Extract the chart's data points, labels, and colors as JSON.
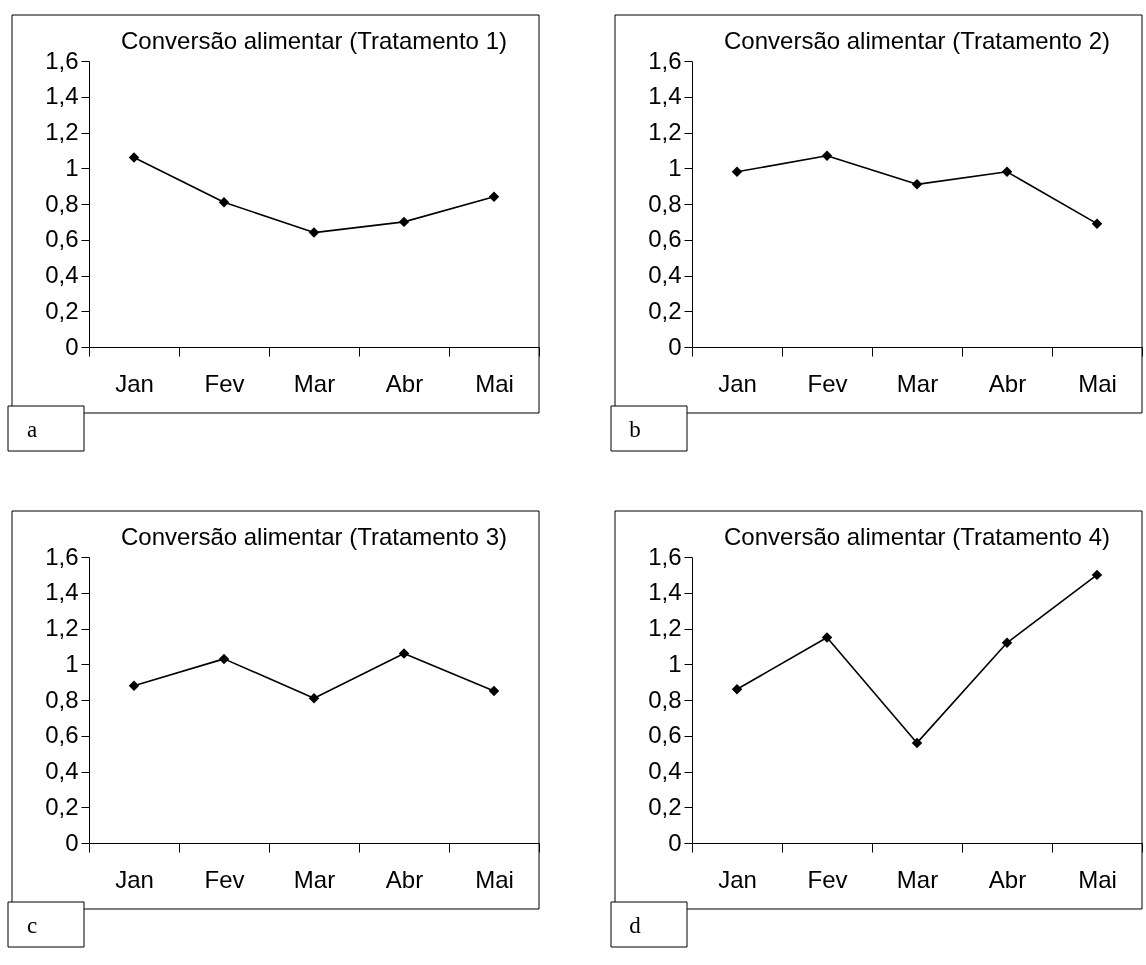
{
  "chart_data": [
    {
      "type": "line",
      "title": "Conversão alimentar (Tratamento 1)",
      "categories": [
        "Jan",
        "Fev",
        "Mar",
        "Abr",
        "Mai"
      ],
      "series": [
        {
          "color": "#000000",
          "values": [
            1.06,
            0.81,
            0.64,
            0.7,
            0.84
          ]
        }
      ],
      "ylim": [
        0,
        1.6
      ],
      "yticks": [
        0,
        {
          "value": 0.2,
          "label": "0,2"
        },
        {
          "value": 0.4,
          "label": "0,4"
        },
        {
          "value": 0.6,
          "label": "0,6"
        },
        {
          "value": 0.8,
          "label": "0,8"
        },
        1,
        {
          "value": 1.2,
          "label": "1,2"
        },
        {
          "value": 1.4,
          "label": "1,4"
        },
        {
          "value": 1.6,
          "label": "1,6"
        }
      ],
      "marker": "diamond",
      "line_style": "solid",
      "annotations": [
        "a"
      ]
    },
    {
      "type": "line",
      "title": "Conversão alimentar (Tratamento 2)",
      "categories": [
        "Jan",
        "Fev",
        "Mar",
        "Abr",
        "Mai"
      ],
      "series": [
        {
          "color": "#000000",
          "values": [
            0.98,
            1.07,
            0.91,
            0.98,
            0.69
          ]
        }
      ],
      "ylim": [
        0,
        1.6
      ],
      "yticks": [
        0,
        {
          "value": 0.2,
          "label": "0,2"
        },
        {
          "value": 0.4,
          "label": "0,4"
        },
        {
          "value": 0.6,
          "label": "0,6"
        },
        {
          "value": 0.8,
          "label": "0,8"
        },
        1,
        {
          "value": 1.2,
          "label": "1,2"
        },
        {
          "value": 1.4,
          "label": "1,4"
        },
        {
          "value": 1.6,
          "label": "1,6"
        }
      ],
      "marker": "diamond",
      "line_style": "solid",
      "annotations": [
        "b"
      ]
    },
    {
      "type": "line",
      "title": "Conversão alimentar (Tratamento 3)",
      "categories": [
        "Jan",
        "Fev",
        "Mar",
        "Abr",
        "Mai"
      ],
      "series": [
        {
          "color": "#000000",
          "values": [
            0.88,
            1.03,
            0.81,
            1.06,
            0.85
          ]
        }
      ],
      "ylim": [
        0,
        1.6
      ],
      "yticks": [
        0,
        {
          "value": 0.2,
          "label": "0,2"
        },
        {
          "value": 0.4,
          "label": "0,4"
        },
        {
          "value": 0.6,
          "label": "0,6"
        },
        {
          "value": 0.8,
          "label": "0,8"
        },
        1,
        {
          "value": 1.2,
          "label": "1,2"
        },
        {
          "value": 1.4,
          "label": "1,4"
        },
        {
          "value": 1.6,
          "label": "1,6"
        }
      ],
      "marker": "diamond",
      "line_style": "solid",
      "annotations": [
        "c"
      ]
    },
    {
      "type": "line",
      "title": "Conversão alimentar (Tratamento 4)",
      "categories": [
        "Jan",
        "Fev",
        "Mar",
        "Abr",
        "Mai"
      ],
      "series": [
        {
          "color": "#000000",
          "values": [
            0.86,
            1.15,
            0.56,
            1.12,
            1.5
          ]
        }
      ],
      "ylim": [
        0,
        1.6
      ],
      "yticks": [
        0,
        {
          "value": 0.2,
          "label": "0,2"
        },
        {
          "value": 0.4,
          "label": "0,4"
        },
        {
          "value": 0.6,
          "label": "0,6"
        },
        {
          "value": 0.8,
          "label": "0,8"
        },
        1,
        {
          "value": 1.2,
          "label": "1,2"
        },
        {
          "value": 1.4,
          "label": "1,4"
        },
        {
          "value": 1.6,
          "label": "1,6"
        }
      ],
      "marker": "diamond",
      "line_style": "solid",
      "annotations": [
        "d"
      ]
    }
  ]
}
